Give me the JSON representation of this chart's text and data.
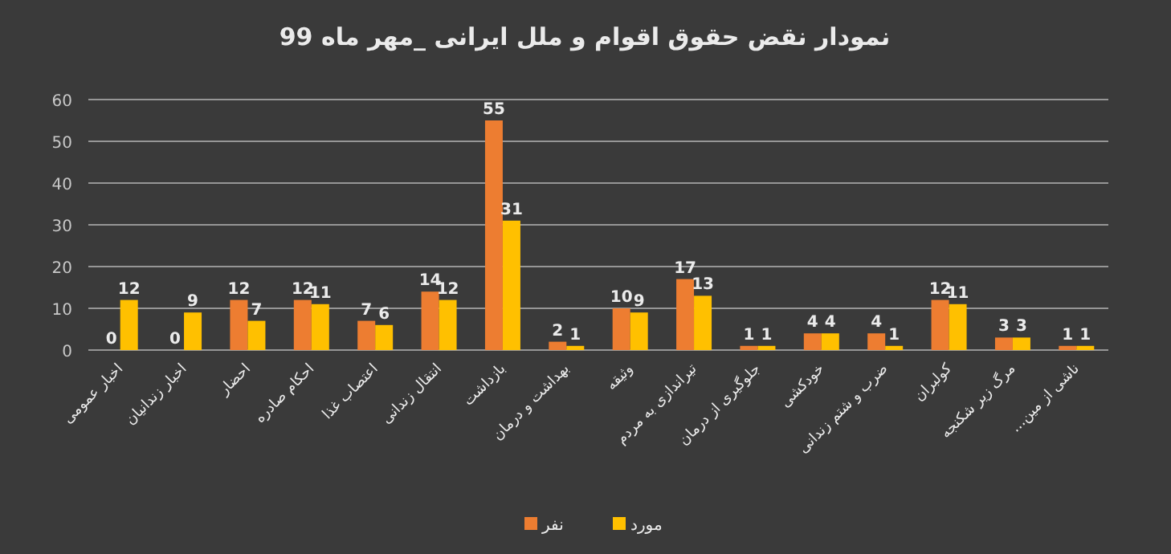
{
  "chart_data": {
    "type": "bar",
    "title": "نمودار نقض حقوق اقوام و ملل ایرانی _مهر ماه 99",
    "categories": [
      "اخبار عمومی",
      "اخبار زندانیان",
      "احضار",
      "احکام صادره",
      "اعتصاب غذا",
      "انتقال زندانی",
      "بازداشت",
      "بهداشت و درمان",
      "وثیقه",
      "تیراندازی به مردم",
      "جلوگیری از درمان",
      "خودکشی",
      "ضرب و شتم زندانی",
      "کولبران",
      "مرگ زیر شکنجه",
      "ناشی از مین..."
    ],
    "series": [
      {
        "name": "نفر",
        "color": "#ed7d31",
        "values": [
          0,
          0,
          12,
          12,
          7,
          14,
          55,
          2,
          10,
          17,
          1,
          4,
          4,
          12,
          3,
          1
        ]
      },
      {
        "name": "مورد",
        "color": "#ffc000",
        "values": [
          12,
          9,
          7,
          11,
          6,
          12,
          31,
          1,
          9,
          13,
          1,
          4,
          1,
          11,
          3,
          1
        ]
      }
    ],
    "ylim": [
      0,
      60
    ],
    "yticks": [
      0,
      10,
      20,
      30,
      40,
      50,
      60
    ],
    "grid": "y",
    "legend": "bottom",
    "data_labels": true
  }
}
